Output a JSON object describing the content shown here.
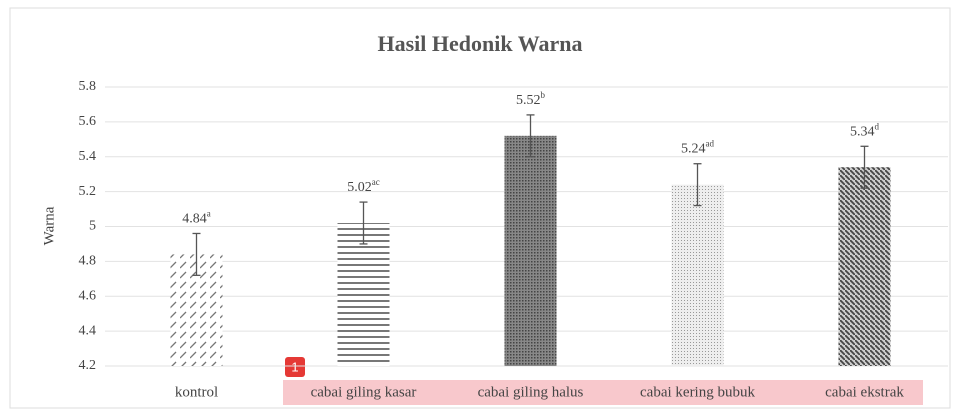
{
  "chart_data": {
    "type": "bar",
    "title": "Hasil Hedonik Warna",
    "y_label": "Warna",
    "categories": [
      "kontrol",
      "cabai giling kasar",
      "cabai giling halus",
      "cabai kering bubuk",
      "cabai ekstrak"
    ],
    "values": [
      4.84,
      5.02,
      5.52,
      5.24,
      5.34
    ],
    "superscripts": [
      "a",
      "ac",
      "b",
      "ad",
      "d"
    ],
    "errors": [
      0.12,
      0.12,
      0.12,
      0.12,
      0.12
    ],
    "color": "#555555",
    "ylim": [
      4.2,
      5.8
    ],
    "yticks": [
      4.2,
      4.4,
      4.6,
      4.8,
      5,
      5.2,
      5.4,
      5.6,
      5.8
    ],
    "grid": true,
    "annotation": "1"
  }
}
